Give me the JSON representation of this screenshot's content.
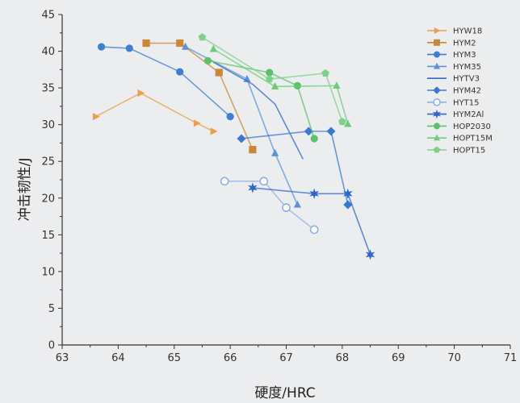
{
  "chart_data": {
    "type": "line",
    "xlabel": "硬度/HRC",
    "ylabel": "冲击韧性/J",
    "xlim": [
      63,
      71
    ],
    "ylim": [
      0,
      45
    ],
    "xticks": [
      "63",
      "64",
      "65",
      "66",
      "67",
      "68",
      "69",
      "70",
      "71"
    ],
    "yticks": [
      "0",
      "5",
      "10",
      "15",
      "20",
      "25",
      "30",
      "35",
      "40",
      "45"
    ],
    "legend_position": "top-right",
    "grid": false,
    "series": [
      {
        "name": "HYW18",
        "color": "#e8a050",
        "marker": "tri-right",
        "points": [
          [
            63.6,
            31.1
          ],
          [
            64.4,
            34.3
          ],
          [
            65.4,
            30.2
          ],
          [
            65.7,
            29.1
          ]
        ]
      },
      {
        "name": "HYM2",
        "color": "#c9873a",
        "marker": "square",
        "points": [
          [
            64.5,
            41.1
          ],
          [
            65.1,
            41.1
          ],
          [
            65.8,
            37.1
          ],
          [
            66.4,
            26.6
          ]
        ]
      },
      {
        "name": "HYM3",
        "color": "#3f7fd0",
        "marker": "circle",
        "points": [
          [
            63.7,
            40.6
          ],
          [
            64.2,
            40.4
          ],
          [
            65.1,
            37.2
          ],
          [
            66.0,
            31.1
          ]
        ]
      },
      {
        "name": "HYM35",
        "color": "#5b92da",
        "marker": "triangle",
        "points": [
          [
            65.2,
            40.6
          ],
          [
            66.3,
            36.2
          ],
          [
            66.8,
            26.1
          ],
          [
            67.2,
            19.1
          ]
        ]
      },
      {
        "name": "HYTV3",
        "color": "#2f6cc4",
        "marker": "crescent",
        "points": [
          [
            65.7,
            38.5
          ],
          [
            66.4,
            35.5
          ],
          [
            66.8,
            32.8
          ],
          [
            67.3,
            25.3
          ]
        ]
      },
      {
        "name": "HYM42",
        "color": "#3b78cf",
        "marker": "diamond",
        "points": [
          [
            66.2,
            28.1
          ],
          [
            67.4,
            29.1
          ],
          [
            67.8,
            29.1
          ],
          [
            68.1,
            19.1
          ]
        ]
      },
      {
        "name": "HYT15",
        "color": "#8fb0e3",
        "marker": "circle-open",
        "points": [
          [
            65.9,
            22.3
          ],
          [
            66.6,
            22.3
          ],
          [
            67.0,
            18.7
          ],
          [
            67.5,
            15.7
          ]
        ]
      },
      {
        "name": "HYM2Al",
        "color": "#2f68c8",
        "marker": "star",
        "points": [
          [
            66.4,
            21.4
          ],
          [
            67.5,
            20.6
          ],
          [
            68.1,
            20.6
          ],
          [
            68.5,
            12.3
          ]
        ]
      },
      {
        "name": "HOP2030",
        "color": "#5cbf6a",
        "marker": "circle",
        "points": [
          [
            65.6,
            38.7
          ],
          [
            66.7,
            37.1
          ],
          [
            67.2,
            35.3
          ],
          [
            67.5,
            28.1
          ]
        ]
      },
      {
        "name": "HOPT15M",
        "color": "#6ecb7a",
        "marker": "triangle",
        "points": [
          [
            65.7,
            40.3
          ],
          [
            66.8,
            35.2
          ],
          [
            67.9,
            35.3
          ],
          [
            68.1,
            30.1
          ]
        ]
      },
      {
        "name": "HOPT15",
        "color": "#7ed08a",
        "marker": "pentagon",
        "points": [
          [
            65.5,
            41.9
          ],
          [
            66.7,
            36.2
          ],
          [
            67.7,
            37.0
          ],
          [
            68.0,
            30.4
          ]
        ]
      }
    ]
  }
}
